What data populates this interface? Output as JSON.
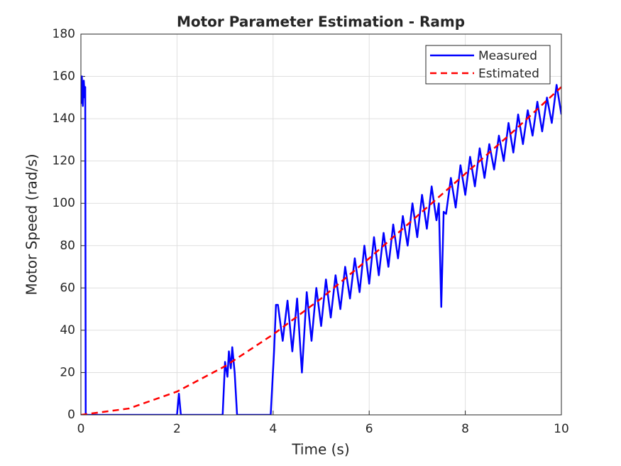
{
  "chart_data": {
    "type": "line",
    "title": "Motor Parameter Estimation - Ramp",
    "xlabel": "Time (s)",
    "ylabel": "Motor Speed (rad/s)",
    "xlim": [
      0,
      10
    ],
    "xticks": [
      0,
      2,
      4,
      6,
      8,
      10
    ],
    "ylim": [
      0,
      180
    ],
    "yticks": [
      0,
      20,
      40,
      60,
      80,
      100,
      120,
      140,
      160,
      180
    ],
    "grid": true,
    "legend": "upper-right",
    "series": [
      {
        "name": "Measured",
        "color": "#0000ff",
        "linestyle": "solid",
        "x": [
          0,
          0.02,
          0.04,
          0.06,
          0.08,
          0.09,
          0.1,
          2.0,
          2.04,
          2.08,
          2.95,
          3.0,
          3.05,
          3.08,
          3.12,
          3.15,
          3.2,
          3.25,
          3.95,
          4.02,
          4.06,
          4.1,
          4.2,
          4.3,
          4.4,
          4.5,
          4.6,
          4.7,
          4.8,
          4.9,
          5.0,
          5.1,
          5.2,
          5.3,
          5.4,
          5.5,
          5.6,
          5.7,
          5.8,
          5.9,
          6.0,
          6.1,
          6.2,
          6.3,
          6.4,
          6.5,
          6.6,
          6.7,
          6.8,
          6.9,
          7.0,
          7.1,
          7.2,
          7.3,
          7.4,
          7.45,
          7.5,
          7.55,
          7.6,
          7.7,
          7.8,
          7.9,
          8,
          8.1,
          8.2,
          8.3,
          8.4,
          8.5,
          8.6,
          8.7,
          8.8,
          8.9,
          9,
          9.1,
          9.2,
          9.3,
          9.4,
          9.5,
          9.6,
          9.7,
          9.8,
          9.9,
          10
        ],
        "values": [
          147,
          160,
          146,
          158,
          150,
          155,
          0,
          0,
          10,
          0,
          0,
          25,
          18,
          30,
          22,
          32,
          20,
          0,
          0,
          30,
          52,
          52,
          35,
          54,
          30,
          55,
          20,
          58,
          35,
          60,
          42,
          64,
          46,
          66,
          50,
          70,
          55,
          74,
          58,
          80,
          62,
          84,
          66,
          86,
          70,
          90,
          74,
          94,
          80,
          100,
          84,
          104,
          88,
          108,
          92,
          100,
          51,
          96,
          95,
          112,
          98,
          118,
          104,
          122,
          108,
          126,
          112,
          128,
          116,
          132,
          120,
          138,
          124,
          142,
          128,
          144,
          132,
          148,
          134,
          150,
          138,
          156,
          142
        ]
      },
      {
        "name": "Estimated",
        "color": "#ff0000",
        "linestyle": "dashed",
        "x": [
          0,
          1,
          2,
          3,
          4,
          5,
          6,
          7,
          8,
          9,
          10
        ],
        "values": [
          0,
          3,
          11,
          23,
          38,
          55,
          74,
          94,
          114,
          134,
          155
        ]
      }
    ]
  }
}
